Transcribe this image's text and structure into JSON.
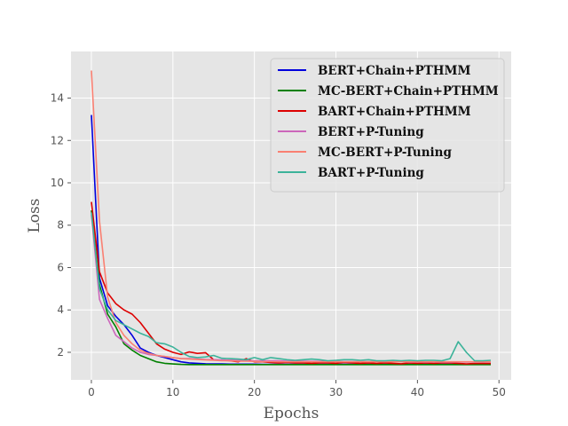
{
  "chart_data": {
    "type": "line",
    "title": "",
    "xlabel": "Epochs",
    "ylabel": "Loss",
    "xlim": [
      -2.5,
      51.5
    ],
    "ylim": [
      0.7,
      16.2
    ],
    "xticks": [
      0,
      10,
      20,
      30,
      40,
      50
    ],
    "yticks": [
      2,
      4,
      6,
      8,
      10,
      12,
      14
    ],
    "grid": true,
    "legend_position": "top-right",
    "background": "#e5e5e5",
    "series": [
      {
        "name": "BERT+Chain+PTHMM",
        "color": "#0000dd",
        "x": [
          0,
          1,
          2,
          3,
          4,
          5,
          6,
          7,
          8,
          9,
          10,
          11,
          12,
          13,
          14,
          15,
          16,
          17,
          18,
          19,
          20,
          21,
          22,
          23,
          24,
          25,
          26,
          27,
          28,
          29,
          30,
          31,
          32,
          33,
          34,
          35,
          36,
          37,
          38,
          39,
          40,
          41,
          42,
          43,
          44,
          45,
          46,
          47,
          48,
          49
        ],
        "values": [
          13.2,
          5.5,
          4.2,
          3.7,
          3.3,
          2.8,
          2.2,
          2.0,
          1.85,
          1.75,
          1.65,
          1.55,
          1.5,
          1.48,
          1.46,
          1.45,
          1.45,
          1.44,
          1.44,
          1.44,
          1.44,
          1.43,
          1.43,
          1.43,
          1.43,
          1.43,
          1.43,
          1.43,
          1.43,
          1.43,
          1.43,
          1.43,
          1.43,
          1.43,
          1.43,
          1.43,
          1.43,
          1.43,
          1.43,
          1.43,
          1.43,
          1.43,
          1.43,
          1.43,
          1.43,
          1.43,
          1.43,
          1.43,
          1.43,
          1.43
        ]
      },
      {
        "name": "MC-BERT+Chain+PTHMM",
        "color": "#008000",
        "x": [
          0,
          1,
          2,
          3,
          4,
          5,
          6,
          7,
          8,
          9,
          10,
          11,
          12,
          13,
          14,
          15,
          16,
          17,
          18,
          19,
          20,
          21,
          22,
          23,
          24,
          25,
          26,
          27,
          28,
          29,
          30,
          31,
          32,
          33,
          34,
          35,
          36,
          37,
          38,
          39,
          40,
          41,
          42,
          43,
          44,
          45,
          46,
          47,
          48,
          49
        ],
        "values": [
          8.7,
          5.2,
          3.8,
          3.2,
          2.4,
          2.1,
          1.85,
          1.7,
          1.55,
          1.48,
          1.45,
          1.43,
          1.42,
          1.42,
          1.42,
          1.42,
          1.42,
          1.42,
          1.42,
          1.42,
          1.42,
          1.42,
          1.42,
          1.42,
          1.42,
          1.42,
          1.42,
          1.42,
          1.42,
          1.42,
          1.42,
          1.42,
          1.42,
          1.42,
          1.42,
          1.42,
          1.42,
          1.42,
          1.42,
          1.42,
          1.42,
          1.42,
          1.42,
          1.42,
          1.42,
          1.42,
          1.42,
          1.42,
          1.42,
          1.42
        ]
      },
      {
        "name": "BART+Chain+PTHMM",
        "color": "#dd0000",
        "x": [
          0,
          1,
          2,
          3,
          4,
          5,
          6,
          7,
          8,
          9,
          10,
          11,
          12,
          13,
          14,
          15,
          16,
          17,
          18,
          19,
          20,
          21,
          22,
          23,
          24,
          25,
          26,
          27,
          28,
          29,
          30,
          31,
          32,
          33,
          34,
          35,
          36,
          37,
          38,
          39,
          40,
          41,
          42,
          43,
          44,
          45,
          46,
          47,
          48,
          49
        ],
        "values": [
          9.1,
          5.8,
          4.8,
          4.3,
          4.0,
          3.8,
          3.4,
          2.9,
          2.4,
          2.15,
          2.0,
          1.9,
          2.02,
          1.95,
          1.98,
          1.65,
          1.62,
          1.6,
          1.55,
          1.7,
          1.55,
          1.55,
          1.52,
          1.5,
          1.52,
          1.5,
          1.5,
          1.48,
          1.5,
          1.5,
          1.48,
          1.52,
          1.5,
          1.48,
          1.5,
          1.47,
          1.5,
          1.48,
          1.46,
          1.5,
          1.48,
          1.5,
          1.48,
          1.5,
          1.5,
          1.48,
          1.45,
          1.47,
          1.48,
          1.47
        ]
      },
      {
        "name": "BERT+P-Tuning",
        "color": "#cc66bb",
        "x": [
          0,
          1,
          2,
          3,
          4,
          5,
          6,
          7,
          8,
          9,
          10,
          11,
          12,
          13,
          14,
          15,
          16,
          17,
          18,
          19,
          20,
          21,
          22,
          23,
          24,
          25,
          26,
          27,
          28,
          29,
          30,
          31,
          32,
          33,
          34,
          35,
          36,
          37,
          38,
          39,
          40,
          41,
          42,
          43,
          44,
          45,
          46,
          47,
          48,
          49
        ],
        "values": [
          8.5,
          4.5,
          3.6,
          2.8,
          2.5,
          2.2,
          2.0,
          1.9,
          1.85,
          1.8,
          1.75,
          1.7,
          1.7,
          1.68,
          1.66,
          1.65,
          1.64,
          1.63,
          1.62,
          1.61,
          1.6,
          1.6,
          1.6,
          1.6,
          1.58,
          1.58,
          1.58,
          1.57,
          1.57,
          1.56,
          1.56,
          1.56,
          1.56,
          1.55,
          1.55,
          1.55,
          1.55,
          1.55,
          1.55,
          1.54,
          1.54,
          1.54,
          1.54,
          1.54,
          1.54,
          1.54,
          1.54,
          1.54,
          1.54,
          1.54
        ]
      },
      {
        "name": "MC-BERT+P-Tuning",
        "color": "#fa8072",
        "x": [
          0,
          1,
          2,
          3,
          4,
          5,
          6,
          7,
          8,
          9,
          10,
          11,
          12,
          13,
          14,
          15,
          16,
          17,
          18,
          19,
          20,
          21,
          22,
          23,
          24,
          25,
          26,
          27,
          28,
          29,
          30,
          31,
          32,
          33,
          34,
          35,
          36,
          37,
          38,
          39,
          40,
          41,
          42,
          43,
          44,
          45,
          46,
          47,
          48,
          49
        ],
        "values": [
          15.3,
          8.2,
          4.6,
          3.4,
          2.8,
          2.4,
          2.1,
          1.95,
          1.85,
          1.8,
          1.75,
          1.7,
          1.68,
          1.66,
          1.64,
          1.62,
          1.6,
          1.6,
          1.58,
          1.58,
          1.57,
          1.56,
          1.56,
          1.55,
          1.55,
          1.55,
          1.55,
          1.55,
          1.55,
          1.55,
          1.55,
          1.55,
          1.55,
          1.55,
          1.55,
          1.55,
          1.55,
          1.55,
          1.55,
          1.55,
          1.55,
          1.55,
          1.55,
          1.55,
          1.55,
          1.55,
          1.55,
          1.55,
          1.55,
          1.55
        ]
      },
      {
        "name": "BART+P-Tuning",
        "color": "#3cb39a",
        "x": [
          0,
          1,
          2,
          3,
          4,
          5,
          6,
          7,
          8,
          9,
          10,
          11,
          12,
          13,
          14,
          15,
          16,
          17,
          18,
          19,
          20,
          21,
          22,
          23,
          24,
          25,
          26,
          27,
          28,
          29,
          30,
          31,
          32,
          33,
          34,
          35,
          36,
          37,
          38,
          39,
          40,
          41,
          42,
          43,
          44,
          45,
          46,
          47,
          48,
          49
        ],
        "values": [
          8.6,
          5.0,
          4.0,
          3.5,
          3.3,
          3.1,
          2.9,
          2.75,
          2.45,
          2.4,
          2.25,
          2.0,
          1.8,
          1.75,
          1.78,
          1.85,
          1.72,
          1.7,
          1.68,
          1.65,
          1.75,
          1.65,
          1.75,
          1.7,
          1.65,
          1.62,
          1.65,
          1.68,
          1.65,
          1.6,
          1.62,
          1.65,
          1.65,
          1.62,
          1.65,
          1.6,
          1.6,
          1.62,
          1.6,
          1.62,
          1.6,
          1.62,
          1.62,
          1.6,
          1.7,
          2.5,
          2.0,
          1.6,
          1.6,
          1.62
        ]
      }
    ]
  }
}
